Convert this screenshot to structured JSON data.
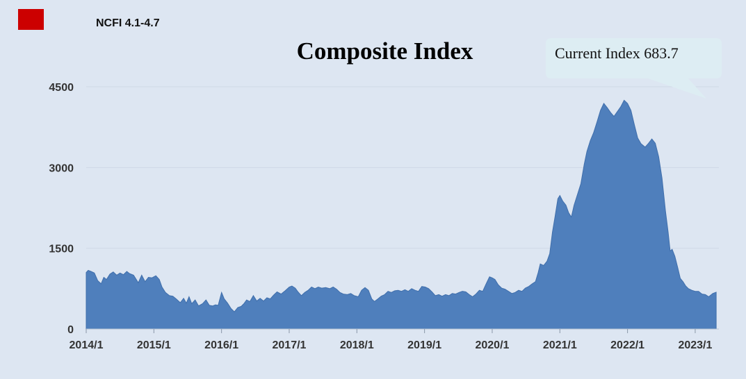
{
  "legend": {
    "label": "NCFI 4.1-4.7",
    "swatch_color": "#cc0000"
  },
  "callout": {
    "text": "Current Index 683.7",
    "color": "#ddedf3"
  },
  "chart_data": {
    "type": "area",
    "title": "Composite Index",
    "xlabel": "",
    "ylabel": "",
    "ylim": [
      0,
      4500
    ],
    "yticks": [
      0,
      1500,
      3000,
      4500
    ],
    "xlim": [
      2014.0,
      2023.35
    ],
    "xticks": [
      {
        "x": 2014.0,
        "label": "2014/1"
      },
      {
        "x": 2015.0,
        "label": "2015/1"
      },
      {
        "x": 2016.0,
        "label": "2016/1"
      },
      {
        "x": 2017.0,
        "label": "2017/1"
      },
      {
        "x": 2018.0,
        "label": "2018/1"
      },
      {
        "x": 2019.0,
        "label": "2019/1"
      },
      {
        "x": 2020.0,
        "label": "2020/1"
      },
      {
        "x": 2021.0,
        "label": "2021/1"
      },
      {
        "x": 2022.0,
        "label": "2022/1"
      },
      {
        "x": 2023.0,
        "label": "2023/1"
      }
    ],
    "fill_color": "#4f7fbc",
    "grid": "horizontal",
    "series": [
      {
        "points": [
          [
            2014.0,
            1050
          ],
          [
            2014.03,
            1090
          ],
          [
            2014.07,
            1070
          ],
          [
            2014.12,
            1040
          ],
          [
            2014.17,
            900
          ],
          [
            2014.22,
            840
          ],
          [
            2014.26,
            960
          ],
          [
            2014.3,
            920
          ],
          [
            2014.35,
            1020
          ],
          [
            2014.4,
            1060
          ],
          [
            2014.45,
            1000
          ],
          [
            2014.5,
            1040
          ],
          [
            2014.55,
            1010
          ],
          [
            2014.6,
            1070
          ],
          [
            2014.64,
            1030
          ],
          [
            2014.7,
            1000
          ],
          [
            2014.77,
            860
          ],
          [
            2014.82,
            1000
          ],
          [
            2014.87,
            880
          ],
          [
            2014.92,
            960
          ],
          [
            2014.97,
            950
          ],
          [
            2015.03,
            990
          ],
          [
            2015.08,
            920
          ],
          [
            2015.12,
            780
          ],
          [
            2015.17,
            680
          ],
          [
            2015.23,
            620
          ],
          [
            2015.28,
            610
          ],
          [
            2015.33,
            560
          ],
          [
            2015.39,
            490
          ],
          [
            2015.44,
            570
          ],
          [
            2015.48,
            480
          ],
          [
            2015.52,
            600
          ],
          [
            2015.56,
            470
          ],
          [
            2015.61,
            540
          ],
          [
            2015.66,
            430
          ],
          [
            2015.72,
            470
          ],
          [
            2015.77,
            540
          ],
          [
            2015.82,
            440
          ],
          [
            2015.87,
            430
          ],
          [
            2015.91,
            450
          ],
          [
            2015.95,
            440
          ],
          [
            2016.0,
            680
          ],
          [
            2016.04,
            560
          ],
          [
            2016.09,
            480
          ],
          [
            2016.14,
            380
          ],
          [
            2016.19,
            320
          ],
          [
            2016.24,
            400
          ],
          [
            2016.29,
            420
          ],
          [
            2016.33,
            470
          ],
          [
            2016.37,
            540
          ],
          [
            2016.42,
            510
          ],
          [
            2016.47,
            620
          ],
          [
            2016.52,
            520
          ],
          [
            2016.57,
            570
          ],
          [
            2016.62,
            520
          ],
          [
            2016.67,
            580
          ],
          [
            2016.72,
            560
          ],
          [
            2016.77,
            630
          ],
          [
            2016.82,
            690
          ],
          [
            2016.88,
            650
          ],
          [
            2016.93,
            700
          ],
          [
            2017.0,
            780
          ],
          [
            2017.04,
            800
          ],
          [
            2017.09,
            760
          ],
          [
            2017.13,
            690
          ],
          [
            2017.18,
            620
          ],
          [
            2017.23,
            680
          ],
          [
            2017.28,
            720
          ],
          [
            2017.33,
            780
          ],
          [
            2017.38,
            750
          ],
          [
            2017.43,
            780
          ],
          [
            2017.48,
            760
          ],
          [
            2017.54,
            770
          ],
          [
            2017.6,
            750
          ],
          [
            2017.65,
            780
          ],
          [
            2017.7,
            740
          ],
          [
            2017.75,
            680
          ],
          [
            2017.8,
            650
          ],
          [
            2017.86,
            640
          ],
          [
            2017.91,
            660
          ],
          [
            2017.96,
            620
          ],
          [
            2018.02,
            600
          ],
          [
            2018.07,
            720
          ],
          [
            2018.12,
            770
          ],
          [
            2018.17,
            720
          ],
          [
            2018.22,
            560
          ],
          [
            2018.26,
            510
          ],
          [
            2018.31,
            560
          ],
          [
            2018.36,
            610
          ],
          [
            2018.41,
            640
          ],
          [
            2018.46,
            700
          ],
          [
            2018.51,
            680
          ],
          [
            2018.56,
            710
          ],
          [
            2018.61,
            720
          ],
          [
            2018.66,
            700
          ],
          [
            2018.71,
            730
          ],
          [
            2018.76,
            700
          ],
          [
            2018.81,
            750
          ],
          [
            2018.86,
            720
          ],
          [
            2018.91,
            700
          ],
          [
            2018.96,
            790
          ],
          [
            2019.01,
            780
          ],
          [
            2019.06,
            750
          ],
          [
            2019.11,
            690
          ],
          [
            2019.16,
            620
          ],
          [
            2019.21,
            640
          ],
          [
            2019.26,
            610
          ],
          [
            2019.31,
            640
          ],
          [
            2019.36,
            620
          ],
          [
            2019.41,
            660
          ],
          [
            2019.46,
            650
          ],
          [
            2019.51,
            680
          ],
          [
            2019.56,
            700
          ],
          [
            2019.61,
            690
          ],
          [
            2019.66,
            640
          ],
          [
            2019.71,
            600
          ],
          [
            2019.76,
            650
          ],
          [
            2019.81,
            720
          ],
          [
            2019.86,
            700
          ],
          [
            2019.91,
            840
          ],
          [
            2019.96,
            970
          ],
          [
            2020.0,
            950
          ],
          [
            2020.04,
            920
          ],
          [
            2020.09,
            820
          ],
          [
            2020.14,
            760
          ],
          [
            2020.19,
            740
          ],
          [
            2020.24,
            700
          ],
          [
            2020.29,
            660
          ],
          [
            2020.34,
            680
          ],
          [
            2020.39,
            720
          ],
          [
            2020.44,
            700
          ],
          [
            2020.49,
            760
          ],
          [
            2020.54,
            790
          ],
          [
            2020.59,
            840
          ],
          [
            2020.64,
            880
          ],
          [
            2020.68,
            1050
          ],
          [
            2020.71,
            1210
          ],
          [
            2020.76,
            1180
          ],
          [
            2020.81,
            1260
          ],
          [
            2020.85,
            1400
          ],
          [
            2020.89,
            1800
          ],
          [
            2020.93,
            2100
          ],
          [
            2020.97,
            2420
          ],
          [
            2021.0,
            2480
          ],
          [
            2021.04,
            2380
          ],
          [
            2021.09,
            2300
          ],
          [
            2021.13,
            2160
          ],
          [
            2021.17,
            2080
          ],
          [
            2021.21,
            2300
          ],
          [
            2021.26,
            2500
          ],
          [
            2021.31,
            2700
          ],
          [
            2021.36,
            3060
          ],
          [
            2021.4,
            3300
          ],
          [
            2021.45,
            3500
          ],
          [
            2021.5,
            3650
          ],
          [
            2021.55,
            3850
          ],
          [
            2021.6,
            4060
          ],
          [
            2021.65,
            4190
          ],
          [
            2021.7,
            4110
          ],
          [
            2021.75,
            4020
          ],
          [
            2021.8,
            3950
          ],
          [
            2021.85,
            4040
          ],
          [
            2021.9,
            4130
          ],
          [
            2021.95,
            4250
          ],
          [
            2022.0,
            4190
          ],
          [
            2022.05,
            4060
          ],
          [
            2022.1,
            3800
          ],
          [
            2022.15,
            3550
          ],
          [
            2022.2,
            3440
          ],
          [
            2022.26,
            3380
          ],
          [
            2022.31,
            3450
          ],
          [
            2022.36,
            3530
          ],
          [
            2022.41,
            3450
          ],
          [
            2022.46,
            3200
          ],
          [
            2022.51,
            2800
          ],
          [
            2022.56,
            2200
          ],
          [
            2022.6,
            1800
          ],
          [
            2022.63,
            1450
          ],
          [
            2022.66,
            1480
          ],
          [
            2022.7,
            1350
          ],
          [
            2022.74,
            1150
          ],
          [
            2022.78,
            940
          ],
          [
            2022.82,
            880
          ],
          [
            2022.86,
            800
          ],
          [
            2022.9,
            750
          ],
          [
            2022.95,
            720
          ],
          [
            2023.0,
            700
          ],
          [
            2023.05,
            700
          ],
          [
            2023.1,
            650
          ],
          [
            2023.15,
            640
          ],
          [
            2023.2,
            600
          ],
          [
            2023.26,
            660
          ],
          [
            2023.31,
            684
          ]
        ]
      }
    ]
  }
}
